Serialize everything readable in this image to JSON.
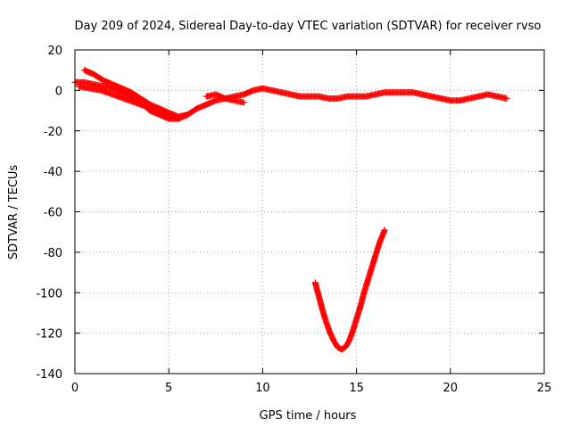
{
  "chart_data": {
    "type": "scatter",
    "title": "Day 209 of 2024, Sidereal Day-to-day VTEC variation (SDTVAR) for receiver rvso",
    "xlabel": "GPS time / hours",
    "ylabel": "SDTVAR / TECUs",
    "xlim": [
      0,
      25
    ],
    "ylim": [
      -140,
      20
    ],
    "xticks": [
      0,
      5,
      10,
      15,
      20,
      25
    ],
    "yticks": [
      20,
      0,
      -20,
      -40,
      -60,
      -80,
      -100,
      -120,
      -140
    ],
    "xtick_labels": [
      "0",
      "5",
      "10",
      "15",
      "20",
      "25"
    ],
    "ytick_labels": [
      "20",
      "0",
      "-20",
      "-40",
      "-60",
      "-80",
      "-100",
      "-120",
      "-140"
    ],
    "grid": true,
    "marker": "plus",
    "series_color": "#ff0000",
    "series": [
      {
        "x": [
          0.0,
          0.5,
          1.0,
          1.5,
          2.0,
          2.5,
          3.0,
          3.5,
          4.0,
          4.5,
          5.0,
          5.5,
          6.0,
          6.5,
          7.0,
          7.5,
          8.0,
          8.5,
          9.0,
          9.5,
          10.0,
          10.5,
          11.0,
          11.5,
          12.0,
          12.5,
          13.0,
          13.5,
          14.0,
          14.5,
          15.0,
          15.5,
          16.0,
          16.5,
          17.0,
          17.5,
          18.0,
          18.5,
          19.0,
          19.5,
          20.0,
          20.5,
          21.0,
          21.5,
          22.0,
          22.5,
          23.0
        ],
        "y": [
          4,
          4,
          3,
          2,
          1,
          -1,
          -3,
          -6,
          -10,
          -12,
          -14,
          -14,
          -12,
          -9,
          -7,
          -5,
          -4,
          -3,
          -2,
          0,
          1,
          0,
          -1,
          -2,
          -3,
          -3,
          -3,
          -4,
          -4,
          -3,
          -3,
          -3,
          -2,
          -1,
          -1,
          -1,
          -1,
          -2,
          -3,
          -4,
          -5,
          -5,
          -4,
          -3,
          -2,
          -3,
          -4
        ]
      },
      {
        "x": [
          0.5,
          1.0,
          1.5,
          2.0,
          2.5,
          3.0,
          3.5,
          4.0,
          4.5,
          5.0,
          5.5,
          6.0
        ],
        "y": [
          10,
          8,
          5,
          3,
          1,
          -1,
          -4,
          -7,
          -9,
          -11,
          -13,
          -12
        ]
      },
      {
        "x": [
          0.2,
          0.8,
          1.4,
          2.0,
          2.6,
          3.2,
          3.8,
          4.4,
          5.0,
          5.6
        ],
        "y": [
          2,
          1,
          0,
          -2,
          -4,
          -6,
          -8,
          -11,
          -13,
          -14
        ]
      },
      {
        "x": [
          7.0,
          7.5,
          8.0,
          8.5,
          9.0
        ],
        "y": [
          -3,
          -2,
          -4,
          -5,
          -6
        ]
      },
      {
        "x": [
          12.8,
          13.0,
          13.2,
          13.4,
          13.6,
          13.8,
          14.0,
          14.2,
          14.4,
          14.6,
          14.8,
          15.0,
          15.2,
          15.4,
          15.6,
          15.8,
          16.0,
          16.2,
          16.5
        ],
        "y": [
          -95,
          -102,
          -109,
          -115,
          -120,
          -124,
          -127,
          -128,
          -127,
          -124,
          -119,
          -113,
          -107,
          -100,
          -94,
          -88,
          -82,
          -76,
          -69
        ]
      }
    ]
  }
}
